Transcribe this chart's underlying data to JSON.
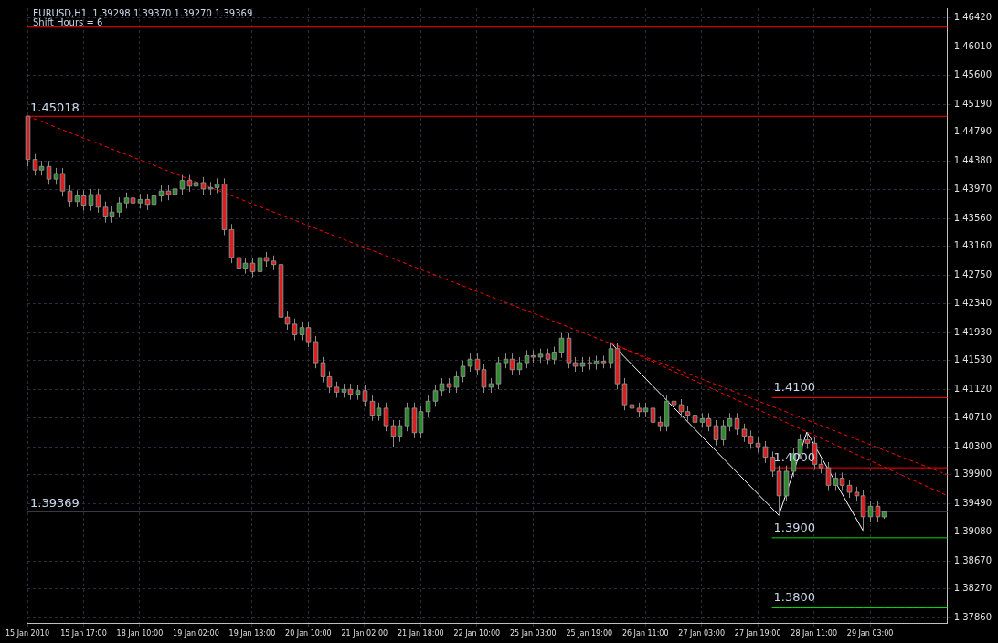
{
  "chart_data": {
    "type": "candlestick",
    "title": "EURUSD,H1  1.39298 1.39370 1.39270 1.39369",
    "subtitle": "Shift Hours = 6",
    "categories": [
      "15 Jan 2010",
      null,
      null,
      null,
      null,
      null,
      null,
      null,
      "15 Jan 17:00",
      null,
      null,
      null,
      null,
      null,
      null,
      null,
      "18 Jan 10:00",
      null,
      null,
      null,
      null,
      null,
      null,
      null,
      "19 Jan 02:00",
      null,
      null,
      null,
      null,
      null,
      null,
      null,
      "19 Jan 18:00",
      null,
      null,
      null,
      null,
      null,
      null,
      null,
      "20 Jan 10:00",
      null,
      null,
      null,
      null,
      null,
      null,
      null,
      "21 Jan 02:00",
      null,
      null,
      null,
      null,
      null,
      null,
      null,
      "21 Jan 18:00",
      null,
      null,
      null,
      null,
      null,
      null,
      null,
      "22 Jan 10:00",
      null,
      null,
      null,
      null,
      null,
      null,
      null,
      "25 Jan 03:00",
      null,
      null,
      null,
      null,
      null,
      null,
      null,
      "25 Jan 19:00",
      null,
      null,
      null,
      null,
      null,
      null,
      null,
      "26 Jan 11:00",
      null,
      null,
      null,
      null,
      null,
      null,
      null,
      "27 Jan 03:00",
      null,
      null,
      null,
      null,
      null,
      null,
      null,
      "27 Jan 19:00",
      null,
      null,
      null,
      null,
      null,
      null,
      null,
      "28 Jan 11:00",
      null,
      null,
      null,
      null,
      null,
      null,
      null,
      "29 Jan 03:00",
      null,
      null,
      null,
      null,
      null,
      null,
      null,
      null,
      null,
      null,
      null
    ],
    "ohlc": [
      [
        1.4502,
        1.4502,
        1.443,
        1.444
      ],
      [
        1.444,
        1.4448,
        1.4417,
        1.4425
      ],
      [
        1.4425,
        1.4438,
        1.4417,
        1.443
      ],
      [
        1.443,
        1.4438,
        1.4404,
        1.4412
      ],
      [
        1.4412,
        1.4428,
        1.4404,
        1.442
      ],
      [
        1.442,
        1.4428,
        1.4387,
        1.4395
      ],
      [
        1.4395,
        1.4403,
        1.4372,
        1.438
      ],
      [
        1.438,
        1.4396,
        1.4372,
        1.4388
      ],
      [
        1.4388,
        1.4396,
        1.4367,
        1.4375
      ],
      [
        1.4375,
        1.4398,
        1.4367,
        1.439
      ],
      [
        1.439,
        1.4398,
        1.4364,
        1.4372
      ],
      [
        1.4372,
        1.438,
        1.435,
        1.4358
      ],
      [
        1.4358,
        1.4373,
        1.435,
        1.4365
      ],
      [
        1.4365,
        1.4386,
        1.4357,
        1.4378
      ],
      [
        1.4378,
        1.4393,
        1.437,
        1.4385
      ],
      [
        1.4385,
        1.4393,
        1.437,
        1.4378
      ],
      [
        1.4378,
        1.4391,
        1.437,
        1.4383
      ],
      [
        1.4383,
        1.4391,
        1.4368,
        1.4376
      ],
      [
        1.4376,
        1.4396,
        1.4368,
        1.4388
      ],
      [
        1.4388,
        1.4403,
        1.438,
        1.4395
      ],
      [
        1.4395,
        1.4403,
        1.4382,
        1.439
      ],
      [
        1.439,
        1.4406,
        1.4382,
        1.4398
      ],
      [
        1.4398,
        1.4418,
        1.439,
        1.441
      ],
      [
        1.441,
        1.4418,
        1.4394,
        1.4402
      ],
      [
        1.4402,
        1.4415,
        1.4394,
        1.4407
      ],
      [
        1.4407,
        1.4415,
        1.439,
        1.4398
      ],
      [
        1.4398,
        1.4408,
        1.439,
        1.44
      ],
      [
        1.44,
        1.4413,
        1.4392,
        1.4405
      ],
      [
        1.4405,
        1.4413,
        1.4332,
        1.434
      ],
      [
        1.434,
        1.4348,
        1.4292,
        1.43
      ],
      [
        1.43,
        1.4308,
        1.4277,
        1.4285
      ],
      [
        1.4285,
        1.43,
        1.4277,
        1.4292
      ],
      [
        1.4292,
        1.43,
        1.4272,
        1.428
      ],
      [
        1.428,
        1.4308,
        1.4272,
        1.43
      ],
      [
        1.43,
        1.4308,
        1.4287,
        1.4295
      ],
      [
        1.4295,
        1.4303,
        1.4282,
        1.429
      ],
      [
        1.429,
        1.4298,
        1.4207,
        1.4215
      ],
      [
        1.4215,
        1.4223,
        1.4197,
        1.4205
      ],
      [
        1.4205,
        1.4213,
        1.4182,
        1.419
      ],
      [
        1.419,
        1.4208,
        1.4182,
        1.42
      ],
      [
        1.42,
        1.4208,
        1.4172,
        1.418
      ],
      [
        1.418,
        1.4188,
        1.4142,
        1.415
      ],
      [
        1.415,
        1.4158,
        1.4122,
        1.413
      ],
      [
        1.413,
        1.4138,
        1.4107,
        1.4115
      ],
      [
        1.4115,
        1.4123,
        1.41,
        1.4108
      ],
      [
        1.4108,
        1.412,
        1.41,
        1.4112
      ],
      [
        1.4112,
        1.412,
        1.4097,
        1.4105
      ],
      [
        1.4105,
        1.4118,
        1.4097,
        1.411
      ],
      [
        1.411,
        1.4118,
        1.4087,
        1.4095
      ],
      [
        1.4095,
        1.4103,
        1.4067,
        1.4075
      ],
      [
        1.4075,
        1.4093,
        1.4067,
        1.4085
      ],
      [
        1.4085,
        1.4093,
        1.4052,
        1.406
      ],
      [
        1.406,
        1.4068,
        1.403,
        1.4045
      ],
      [
        1.4045,
        1.4068,
        1.4037,
        1.406
      ],
      [
        1.406,
        1.4093,
        1.4052,
        1.4085
      ],
      [
        1.4085,
        1.4093,
        1.4042,
        1.405
      ],
      [
        1.405,
        1.4088,
        1.4042,
        1.408
      ],
      [
        1.408,
        1.4103,
        1.4072,
        1.4095
      ],
      [
        1.4095,
        1.4118,
        1.4087,
        1.411
      ],
      [
        1.411,
        1.4128,
        1.4102,
        1.412
      ],
      [
        1.412,
        1.4128,
        1.4107,
        1.4115
      ],
      [
        1.4115,
        1.4138,
        1.4107,
        1.413
      ],
      [
        1.413,
        1.4153,
        1.4122,
        1.4145
      ],
      [
        1.4145,
        1.4163,
        1.4137,
        1.4155
      ],
      [
        1.4155,
        1.4163,
        1.4132,
        1.414
      ],
      [
        1.414,
        1.4148,
        1.4107,
        1.4115
      ],
      [
        1.4115,
        1.4128,
        1.4107,
        1.412
      ],
      [
        1.412,
        1.4158,
        1.4112,
        1.415
      ],
      [
        1.415,
        1.4163,
        1.4142,
        1.4155
      ],
      [
        1.4155,
        1.4163,
        1.4132,
        1.414
      ],
      [
        1.414,
        1.4158,
        1.4132,
        1.415
      ],
      [
        1.415,
        1.4168,
        1.4142,
        1.416
      ],
      [
        1.416,
        1.4168,
        1.415,
        1.4158
      ],
      [
        1.4158,
        1.417,
        1.415,
        1.4162
      ],
      [
        1.4162,
        1.417,
        1.4147,
        1.4155
      ],
      [
        1.4155,
        1.4173,
        1.4147,
        1.4165
      ],
      [
        1.4165,
        1.4192,
        1.4157,
        1.4185
      ],
      [
        1.4185,
        1.4192,
        1.4142,
        1.415
      ],
      [
        1.415,
        1.4158,
        1.4137,
        1.4145
      ],
      [
        1.4145,
        1.4158,
        1.4137,
        1.415
      ],
      [
        1.415,
        1.4158,
        1.414,
        1.4148
      ],
      [
        1.4148,
        1.416,
        1.414,
        1.4152
      ],
      [
        1.4152,
        1.416,
        1.4142,
        1.415
      ],
      [
        1.415,
        1.4179,
        1.4142,
        1.417
      ],
      [
        1.417,
        1.4178,
        1.4112,
        1.412
      ],
      [
        1.412,
        1.4128,
        1.4082,
        1.409
      ],
      [
        1.409,
        1.4098,
        1.4077,
        1.4085
      ],
      [
        1.4085,
        1.4093,
        1.4072,
        1.408
      ],
      [
        1.408,
        1.4093,
        1.4072,
        1.4085
      ],
      [
        1.4085,
        1.4093,
        1.4057,
        1.4065
      ],
      [
        1.4065,
        1.4073,
        1.4052,
        1.406
      ],
      [
        1.406,
        1.4103,
        1.4052,
        1.4095
      ],
      [
        1.4095,
        1.4103,
        1.4082,
        1.409
      ],
      [
        1.409,
        1.4098,
        1.4072,
        1.408
      ],
      [
        1.408,
        1.4088,
        1.4067,
        1.4075
      ],
      [
        1.4075,
        1.4083,
        1.4057,
        1.4065
      ],
      [
        1.4065,
        1.4078,
        1.4057,
        1.407
      ],
      [
        1.407,
        1.4078,
        1.4052,
        1.406
      ],
      [
        1.406,
        1.4068,
        1.4032,
        1.404
      ],
      [
        1.404,
        1.4068,
        1.4032,
        1.406
      ],
      [
        1.406,
        1.4078,
        1.4052,
        1.407
      ],
      [
        1.407,
        1.4078,
        1.4047,
        1.4055
      ],
      [
        1.4055,
        1.4063,
        1.4037,
        1.4045
      ],
      [
        1.4045,
        1.4053,
        1.4027,
        1.4035
      ],
      [
        1.4035,
        1.4043,
        1.4022,
        1.403
      ],
      [
        1.403,
        1.4038,
        1.4007,
        1.4015
      ],
      [
        1.4015,
        1.4023,
        1.3987,
        1.3995
      ],
      [
        1.3995,
        1.4003,
        1.3932,
        1.396
      ],
      [
        1.396,
        1.4003,
        1.3952,
        1.3995
      ],
      [
        1.3995,
        1.4028,
        1.3987,
        1.402
      ],
      [
        1.402,
        1.4048,
        1.4012,
        1.404
      ],
      [
        1.404,
        1.4051,
        1.4027,
        1.4035
      ],
      [
        1.4035,
        1.4043,
        1.3997,
        1.4005
      ],
      [
        1.4005,
        1.4013,
        1.3992,
        1.4
      ],
      [
        1.4,
        1.4008,
        1.3967,
        1.3975
      ],
      [
        1.3975,
        1.3993,
        1.3967,
        1.3985
      ],
      [
        1.3985,
        1.3993,
        1.3967,
        1.3975
      ],
      [
        1.3975,
        1.3983,
        1.3957,
        1.3965
      ],
      [
        1.3965,
        1.3973,
        1.3952,
        1.396
      ],
      [
        1.396,
        1.3968,
        1.391,
        1.393
      ],
      [
        1.393,
        1.3953,
        1.3922,
        1.3945
      ],
      [
        1.3945,
        1.3953,
        1.3922,
        1.393
      ],
      [
        1.39298,
        1.3937,
        1.3927,
        1.39369
      ],
      null,
      null,
      null,
      null,
      null,
      null,
      null,
      null,
      null
    ],
    "colors": [
      "#dc1e1e",
      "#dc1e1e",
      "#2e8b2e",
      "#dc1e1e",
      "#2e8b2e",
      "#dc1e1e",
      "#dc1e1e",
      "#2e8b2e",
      "#dc1e1e",
      "#2e8b2e",
      "#dc1e1e",
      "#dc1e1e",
      "#2e8b2e",
      "#2e8b2e",
      "#2e8b2e",
      "#dc1e1e",
      "#2e8b2e",
      "#dc1e1e",
      "#2e8b2e",
      "#2e8b2e",
      "#dc1e1e",
      "#2e8b2e",
      "#2e8b2e",
      "#dc1e1e",
      "#2e8b2e",
      "#dc1e1e",
      "#2e8b2e",
      "#2e8b2e",
      "#dc1e1e",
      "#dc1e1e",
      "#dc1e1e",
      "#2e8b2e",
      "#dc1e1e",
      "#2e8b2e",
      "#dc1e1e",
      "#dc1e1e",
      "#dc1e1e",
      "#dc1e1e",
      "#dc1e1e",
      "#2e8b2e",
      "#dc1e1e",
      "#dc1e1e",
      "#dc1e1e",
      "#dc1e1e",
      "#dc1e1e",
      "#2e8b2e",
      "#dc1e1e",
      "#2e8b2e",
      "#dc1e1e",
      "#dc1e1e",
      "#2e8b2e",
      "#dc1e1e",
      "#dc1e1e",
      "#2e8b2e",
      "#2e8b2e",
      "#dc1e1e",
      "#2e8b2e",
      "#2e8b2e",
      "#2e8b2e",
      "#2e8b2e",
      "#dc1e1e",
      "#2e8b2e",
      "#2e8b2e",
      "#2e8b2e",
      "#dc1e1e",
      "#dc1e1e",
      "#2e8b2e",
      "#2e8b2e",
      "#2e8b2e",
      "#dc1e1e",
      "#2e8b2e",
      "#2e8b2e",
      "#dc1e1e",
      "#2e8b2e",
      "#dc1e1e",
      "#2e8b2e",
      "#2e8b2e",
      "#dc1e1e",
      "#dc1e1e",
      "#2e8b2e",
      "#dc1e1e",
      "#2e8b2e",
      "#dc1e1e",
      "#2e8b2e",
      "#dc1e1e",
      "#dc1e1e",
      "#dc1e1e",
      "#dc1e1e",
      "#2e8b2e",
      "#dc1e1e",
      "#dc1e1e",
      "#2e8b2e",
      "#dc1e1e",
      "#dc1e1e",
      "#dc1e1e",
      "#dc1e1e",
      "#2e8b2e",
      "#dc1e1e",
      "#dc1e1e",
      "#2e8b2e",
      "#2e8b2e",
      "#dc1e1e",
      "#dc1e1e",
      "#dc1e1e",
      "#dc1e1e",
      "#dc1e1e",
      "#dc1e1e",
      "#dc1e1e",
      "#2e8b2e",
      "#2e8b2e",
      "#2e8b2e",
      "#dc1e1e",
      "#dc1e1e",
      "#dc1e1e",
      "#dc1e1e",
      "#2e8b2e",
      "#dc1e1e",
      "#dc1e1e",
      "#dc1e1e",
      "#dc1e1e",
      "#2e8b2e",
      "#dc1e1e",
      "#2e8b2e",
      null,
      null,
      null,
      null,
      null,
      null,
      null,
      null,
      null
    ],
    "color": "#8c8c8c",
    "ylim": [
      1.3778,
      1.4656
    ],
    "yticks": [
      {
        "value": 1.3786,
        "label": "1.37860"
      },
      {
        "value": 1.3827,
        "label": "1.38270"
      },
      {
        "value": 1.3867,
        "label": "1.38670"
      },
      {
        "value": 1.3908,
        "label": "1.39080"
      },
      {
        "value": 1.3949,
        "label": "1.39490"
      },
      {
        "value": 1.399,
        "label": "1.39900"
      },
      {
        "value": 1.403,
        "label": "1.40300"
      },
      {
        "value": 1.4071,
        "label": "1.40710"
      },
      {
        "value": 1.4112,
        "label": "1.41120"
      },
      {
        "value": 1.4153,
        "label": "1.41530"
      },
      {
        "value": 1.4193,
        "label": "1.41930"
      },
      {
        "value": 1.4234,
        "label": "1.42340"
      },
      {
        "value": 1.4275,
        "label": "1.42750"
      },
      {
        "value": 1.4316,
        "label": "1.43160"
      },
      {
        "value": 1.4356,
        "label": "1.43560"
      },
      {
        "value": 1.4397,
        "label": "1.43970"
      },
      {
        "value": 1.4438,
        "label": "1.44380"
      },
      {
        "value": 1.4479,
        "label": "1.44790"
      },
      {
        "value": 1.4519,
        "label": "1.45190"
      },
      {
        "value": 1.456,
        "label": "1.45600"
      },
      {
        "value": 1.4601,
        "label": "1.46010"
      },
      {
        "value": 1.4642,
        "label": "1.46420"
      }
    ],
    "grid": true,
    "series": [
      {
        "type": "line",
        "color": "#ff0000",
        "line_style": "dashed",
        "values": [
          1.4502,
          null,
          null,
          null,
          null,
          null,
          null,
          null,
          null,
          null,
          null,
          null,
          null,
          null,
          null,
          null,
          null,
          null,
          null,
          null,
          null,
          null,
          null,
          null,
          null,
          null,
          null,
          null,
          null,
          null,
          null,
          null,
          null,
          null,
          null,
          null,
          null,
          null,
          null,
          null,
          null,
          null,
          null,
          null,
          null,
          null,
          null,
          null,
          null,
          null,
          null,
          null,
          null,
          null,
          null,
          null,
          null,
          null,
          null,
          null,
          null,
          null,
          null,
          null,
          null,
          null,
          null,
          null,
          null,
          null,
          null,
          null,
          null,
          null,
          null,
          null,
          null,
          null,
          null,
          null,
          null,
          null,
          null,
          null,
          null,
          null,
          null,
          null,
          null,
          null,
          null,
          null,
          null,
          null,
          null,
          null,
          null,
          null,
          null,
          null,
          null,
          null,
          null,
          null,
          null,
          null,
          null,
          null,
          null,
          null,
          null,
          null,
          null,
          null,
          null,
          null,
          null,
          null,
          null,
          null,
          null,
          null,
          null,
          null,
          null,
          null,
          null,
          null,
          null,
          null,
          null,
          1.399
        ]
      },
      {
        "type": "line",
        "color": "#ff0000",
        "line_style": "dashed",
        "values": [
          null,
          null,
          null,
          null,
          null,
          null,
          null,
          null,
          null,
          null,
          null,
          null,
          null,
          null,
          null,
          null,
          null,
          null,
          null,
          null,
          null,
          null,
          null,
          null,
          null,
          null,
          null,
          null,
          null,
          null,
          null,
          null,
          null,
          null,
          null,
          null,
          null,
          null,
          null,
          null,
          null,
          null,
          null,
          null,
          null,
          null,
          null,
          null,
          null,
          null,
          null,
          null,
          null,
          null,
          null,
          null,
          null,
          null,
          null,
          null,
          null,
          null,
          null,
          null,
          null,
          null,
          null,
          null,
          null,
          null,
          null,
          null,
          null,
          null,
          null,
          null,
          null,
          null,
          null,
          null,
          null,
          null,
          null,
          1.4179,
          null,
          null,
          null,
          null,
          null,
          null,
          null,
          null,
          null,
          null,
          null,
          null,
          null,
          null,
          null,
          null,
          null,
          null,
          null,
          null,
          null,
          null,
          null,
          null,
          null,
          null,
          null,
          null,
          null,
          null,
          null,
          null,
          null,
          null,
          null,
          null,
          null,
          null,
          null,
          null,
          null,
          null,
          null,
          null,
          null,
          null,
          null,
          1.396
        ]
      },
      {
        "type": "line",
        "color": "#ffffff",
        "line_style": "solid",
        "values": [
          null,
          null,
          null,
          null,
          null,
          null,
          null,
          null,
          null,
          null,
          null,
          null,
          null,
          null,
          null,
          null,
          null,
          null,
          null,
          null,
          null,
          null,
          null,
          null,
          null,
          null,
          null,
          null,
          null,
          null,
          null,
          null,
          null,
          null,
          null,
          null,
          null,
          null,
          null,
          null,
          null,
          null,
          null,
          null,
          null,
          null,
          null,
          null,
          null,
          null,
          null,
          null,
          null,
          null,
          null,
          null,
          null,
          null,
          null,
          null,
          null,
          null,
          null,
          null,
          null,
          null,
          null,
          null,
          null,
          null,
          null,
          null,
          null,
          null,
          null,
          null,
          null,
          null,
          null,
          null,
          null,
          null,
          null,
          1.4179,
          null,
          null,
          null,
          null,
          null,
          null,
          null,
          null,
          null,
          null,
          null,
          null,
          null,
          null,
          null,
          null,
          null,
          null,
          null,
          null,
          null,
          null,
          null,
          1.3932,
          null,
          null,
          null,
          1.4051,
          null,
          null,
          null,
          null,
          null,
          null,
          null,
          1.391,
          null,
          null,
          null,
          null,
          null,
          null,
          null,
          null,
          null,
          null,
          null,
          null
        ]
      },
      {
        "type": "line",
        "name": "1.4100",
        "color": "#ff0000",
        "line_style": "solid",
        "values": [
          null,
          null,
          null,
          null,
          null,
          null,
          null,
          null,
          null,
          null,
          null,
          null,
          null,
          null,
          null,
          null,
          null,
          null,
          null,
          null,
          null,
          null,
          null,
          null,
          null,
          null,
          null,
          null,
          null,
          null,
          null,
          null,
          null,
          null,
          null,
          null,
          null,
          null,
          null,
          null,
          null,
          null,
          null,
          null,
          null,
          null,
          null,
          null,
          null,
          null,
          null,
          null,
          null,
          null,
          null,
          null,
          null,
          null,
          null,
          null,
          null,
          null,
          null,
          null,
          null,
          null,
          null,
          null,
          null,
          null,
          null,
          null,
          null,
          null,
          null,
          null,
          null,
          null,
          null,
          null,
          null,
          null,
          null,
          null,
          null,
          null,
          null,
          null,
          null,
          null,
          null,
          null,
          null,
          null,
          null,
          null,
          null,
          null,
          null,
          null,
          null,
          null,
          null,
          null,
          null,
          null,
          1.41,
          1.41,
          1.41,
          1.41,
          1.41,
          1.41,
          1.41,
          1.41,
          1.41,
          1.41,
          1.41,
          1.41,
          1.41,
          1.41,
          1.41,
          1.41,
          1.41,
          1.41,
          1.41,
          1.41,
          1.41,
          1.41,
          1.41,
          1.41,
          1.41,
          1.41
        ]
      },
      {
        "type": "line",
        "name": "1.4000",
        "color": "#ff0000",
        "line_style": "solid",
        "values": [
          null,
          null,
          null,
          null,
          null,
          null,
          null,
          null,
          null,
          null,
          null,
          null,
          null,
          null,
          null,
          null,
          null,
          null,
          null,
          null,
          null,
          null,
          null,
          null,
          null,
          null,
          null,
          null,
          null,
          null,
          null,
          null,
          null,
          null,
          null,
          null,
          null,
          null,
          null,
          null,
          null,
          null,
          null,
          null,
          null,
          null,
          null,
          null,
          null,
          null,
          null,
          null,
          null,
          null,
          null,
          null,
          null,
          null,
          null,
          null,
          null,
          null,
          null,
          null,
          null,
          null,
          null,
          null,
          null,
          null,
          null,
          null,
          null,
          null,
          null,
          null,
          null,
          null,
          null,
          null,
          null,
          null,
          null,
          null,
          null,
          null,
          null,
          null,
          null,
          null,
          null,
          null,
          null,
          null,
          null,
          null,
          null,
          null,
          null,
          null,
          null,
          null,
          null,
          null,
          null,
          null,
          1.4,
          1.4,
          1.4,
          1.4,
          1.4,
          1.4,
          1.4,
          1.4,
          1.4,
          1.4,
          1.4,
          1.4,
          1.4,
          1.4,
          1.4,
          1.4,
          1.4,
          1.4,
          1.4,
          1.4,
          1.4,
          1.4,
          1.4,
          1.4,
          1.4,
          1.4
        ]
      },
      {
        "type": "line",
        "name": "1.3900",
        "color": "#00e000",
        "line_style": "solid",
        "values": [
          null,
          null,
          null,
          null,
          null,
          null,
          null,
          null,
          null,
          null,
          null,
          null,
          null,
          null,
          null,
          null,
          null,
          null,
          null,
          null,
          null,
          null,
          null,
          null,
          null,
          null,
          null,
          null,
          null,
          null,
          null,
          null,
          null,
          null,
          null,
          null,
          null,
          null,
          null,
          null,
          null,
          null,
          null,
          null,
          null,
          null,
          null,
          null,
          null,
          null,
          null,
          null,
          null,
          null,
          null,
          null,
          null,
          null,
          null,
          null,
          null,
          null,
          null,
          null,
          null,
          null,
          null,
          null,
          null,
          null,
          null,
          null,
          null,
          null,
          null,
          null,
          null,
          null,
          null,
          null,
          null,
          null,
          null,
          null,
          null,
          null,
          null,
          null,
          null,
          null,
          null,
          null,
          null,
          null,
          null,
          null,
          null,
          null,
          null,
          null,
          null,
          null,
          null,
          null,
          null,
          null,
          1.39,
          1.39,
          1.39,
          1.39,
          1.39,
          1.39,
          1.39,
          1.39,
          1.39,
          1.39,
          1.39,
          1.39,
          1.39,
          1.39,
          1.39,
          1.39,
          1.39,
          1.39,
          1.39,
          1.39,
          1.39,
          1.39,
          1.39,
          1.39,
          1.39,
          1.39
        ]
      },
      {
        "type": "line",
        "name": "1.3800",
        "color": "#00e000",
        "line_style": "solid",
        "values": [
          null,
          null,
          null,
          null,
          null,
          null,
          null,
          null,
          null,
          null,
          null,
          null,
          null,
          null,
          null,
          null,
          null,
          null,
          null,
          null,
          null,
          null,
          null,
          null,
          null,
          null,
          null,
          null,
          null,
          null,
          null,
          null,
          null,
          null,
          null,
          null,
          null,
          null,
          null,
          null,
          null,
          null,
          null,
          null,
          null,
          null,
          null,
          null,
          null,
          null,
          null,
          null,
          null,
          null,
          null,
          null,
          null,
          null,
          null,
          null,
          null,
          null,
          null,
          null,
          null,
          null,
          null,
          null,
          null,
          null,
          null,
          null,
          null,
          null,
          null,
          null,
          null,
          null,
          null,
          null,
          null,
          null,
          null,
          null,
          null,
          null,
          null,
          null,
          null,
          null,
          null,
          null,
          null,
          null,
          null,
          null,
          null,
          null,
          null,
          null,
          null,
          null,
          null,
          null,
          null,
          null,
          1.38,
          1.38,
          1.38,
          1.38,
          1.38,
          1.38,
          1.38,
          1.38,
          1.38,
          1.38,
          1.38,
          1.38,
          1.38,
          1.38,
          1.38,
          1.38,
          1.38,
          1.38,
          1.38,
          1.38,
          1.38,
          1.38,
          1.38,
          1.38,
          1.38,
          1.38
        ]
      }
    ],
    "ref_lines": [
      {
        "axis": "y",
        "value": 1.4629,
        "color": "#ff0000"
      },
      {
        "axis": "y",
        "value": 1.45018,
        "label": "1.45018",
        "color": "#ff0000"
      },
      {
        "axis": "y",
        "value": 1.39369,
        "label": "1.39369",
        "color": "#3a3a4a"
      }
    ]
  }
}
